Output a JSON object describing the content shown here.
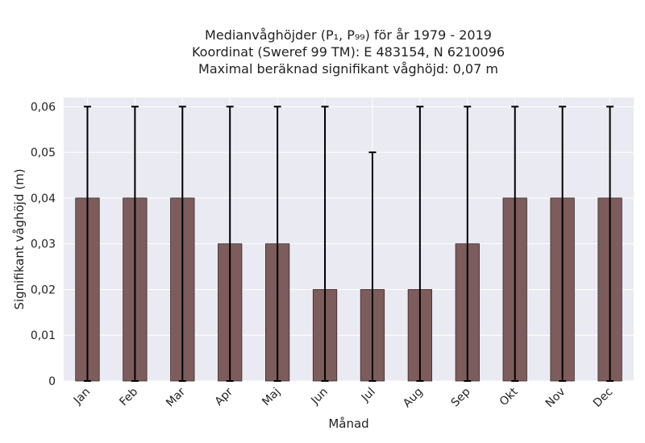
{
  "chart_data": {
    "type": "bar",
    "title_lines": [
      "Medianvåghöjder (P₁, P₉₉) för år 1979 - 2019",
      "Koordinat (Sweref 99 TM): E 483154, N 6210096",
      "Maximal beräknad signifikant våghöjd: 0,07 m"
    ],
    "xlabel": "Månad",
    "ylabel": "Signifikant våghöjd (m)",
    "categories": [
      "Jan",
      "Feb",
      "Mar",
      "Apr",
      "Maj",
      "Jun",
      "Jul",
      "Aug",
      "Sep",
      "Okt",
      "Nov",
      "Dec"
    ],
    "values": [
      0.04,
      0.04,
      0.04,
      0.03,
      0.03,
      0.02,
      0.02,
      0.02,
      0.03,
      0.04,
      0.04,
      0.04
    ],
    "error_low": [
      0,
      0,
      0,
      0,
      0,
      0,
      0,
      0,
      0,
      0,
      0,
      0
    ],
    "error_high": [
      0.06,
      0.06,
      0.06,
      0.06,
      0.06,
      0.06,
      0.05,
      0.06,
      0.06,
      0.06,
      0.06,
      0.06
    ],
    "ylim": [
      0,
      0.062
    ],
    "yticks": [
      0,
      0.01,
      0.02,
      0.03,
      0.04,
      0.05,
      0.06
    ],
    "ytick_labels": [
      "0",
      "0,01",
      "0,02",
      "0,03",
      "0,04",
      "0,05",
      "0,06"
    ],
    "grid": true,
    "colors": {
      "bar": "#7d5c5c",
      "bar_edge": "#3a2a2a",
      "plot_bg": "#eaeaf2",
      "grid": "#ffffff",
      "error": "#000000"
    }
  }
}
